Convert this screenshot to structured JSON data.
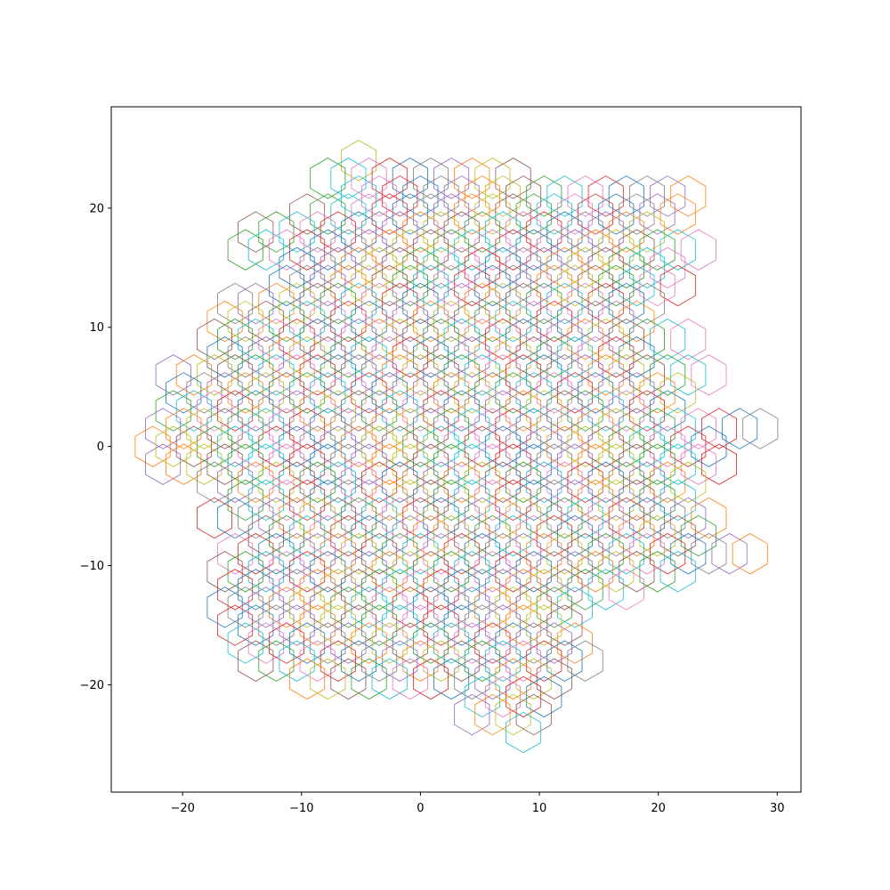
{
  "chart_data": {
    "type": "scatter",
    "marker": "hexagon-outline",
    "title": "",
    "xlabel": "",
    "ylabel": "",
    "xlim": [
      -26,
      32
    ],
    "ylim": [
      -29,
      28.5
    ],
    "grid": false,
    "x_ticks": [
      -20,
      -10,
      0,
      10,
      20,
      30
    ],
    "y_ticks": [
      -20,
      -10,
      0,
      10,
      20
    ],
    "x_tick_labels": [
      "−20",
      "−10",
      "0",
      "10",
      "20",
      "30"
    ],
    "y_tick_labels": [
      "−20",
      "−10",
      "0",
      "10",
      "20"
    ],
    "hex_radius": 1.73,
    "lattice_spacing_x": 1.732,
    "lattice_spacing_y": 1.5,
    "colors": [
      "#1f77b4",
      "#ff7f0e",
      "#2ca02c",
      "#d62728",
      "#9467bd",
      "#8c564b",
      "#e377c2",
      "#7f7f7f",
      "#bcbd22",
      "#17becf"
    ],
    "row_extents": [
      {
        "y": 24,
        "x_min": -6,
        "x_max": -6
      },
      {
        "y": 22.5,
        "x_min": -7,
        "x_max": 7
      },
      {
        "y": 21,
        "x_min": -6,
        "x_max": 23
      },
      {
        "y": 19.5,
        "x_min": -10,
        "x_max": 22
      },
      {
        "y": 18,
        "x_min": -13,
        "x_max": 19
      },
      {
        "y": 16.5,
        "x_min": -14,
        "x_max": 23
      },
      {
        "y": 15,
        "x_min": -10,
        "x_max": 20
      },
      {
        "y": 13.5,
        "x_min": -12,
        "x_max": 21
      },
      {
        "y": 12,
        "x_min": -15,
        "x_max": 19
      },
      {
        "y": 10.5,
        "x_min": -17,
        "x_max": 19
      },
      {
        "y": 9,
        "x_min": -18,
        "x_max": 22
      },
      {
        "y": 7.5,
        "x_min": -17,
        "x_max": 19
      },
      {
        "y": 6,
        "x_min": -21,
        "x_max": 25
      },
      {
        "y": 4.5,
        "x_min": -20,
        "x_max": 22
      },
      {
        "y": 3,
        "x_min": -21,
        "x_max": 20
      },
      {
        "y": 1.5,
        "x_min": -22,
        "x_max": 28
      },
      {
        "y": 0,
        "x_min": -23,
        "x_max": 24
      },
      {
        "y": -1.5,
        "x_min": -22,
        "x_max": 25
      },
      {
        "y": -3,
        "x_min": -18,
        "x_max": 23
      },
      {
        "y": -4.5,
        "x_min": -14,
        "x_max": 22
      },
      {
        "y": -6,
        "x_min": -17,
        "x_max": 25
      },
      {
        "y": -7.5,
        "x_min": -13,
        "x_max": 24
      },
      {
        "y": -9,
        "x_min": -15,
        "x_max": 28
      },
      {
        "y": -10.5,
        "x_min": -17,
        "x_max": 21
      },
      {
        "y": -12,
        "x_min": -15,
        "x_max": 17
      },
      {
        "y": -13.5,
        "x_min": -16,
        "x_max": 13
      },
      {
        "y": -15,
        "x_min": -15,
        "x_max": 12
      },
      {
        "y": -16.5,
        "x_min": -14,
        "x_max": 13
      },
      {
        "y": -18,
        "x_min": -13,
        "x_max": 13
      },
      {
        "y": -19.5,
        "x_min": -10,
        "x_max": 12
      },
      {
        "y": -21,
        "x_min": 5,
        "x_max": 11
      },
      {
        "y": -22.5,
        "x_min": 5,
        "x_max": 10
      },
      {
        "y": -24,
        "x_min": 9,
        "x_max": 9
      }
    ]
  }
}
